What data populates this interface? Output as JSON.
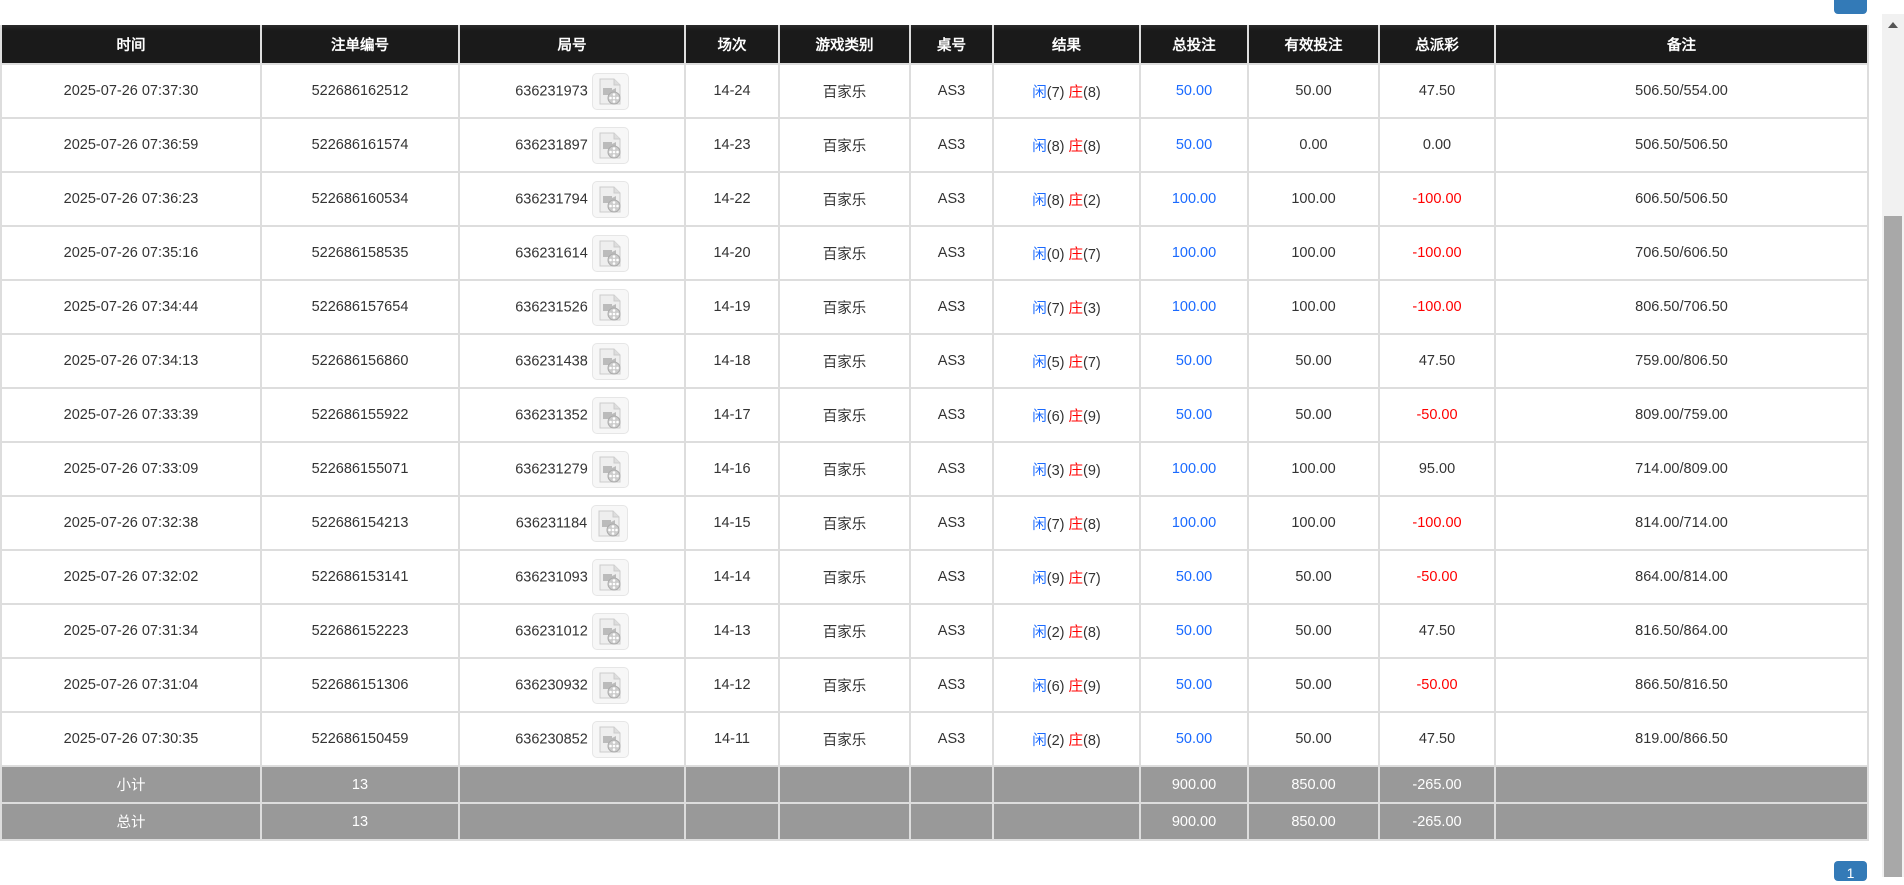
{
  "columns": [
    "时间",
    "注单编号",
    "局号",
    "场次",
    "游戏类别",
    "桌号",
    "结果",
    "总投注",
    "有效投注",
    "总派彩",
    "备注"
  ],
  "result_labels": {
    "player": "闲",
    "banker": "庄"
  },
  "colors": {
    "header_bg": "#1a1a1a",
    "total_bet": "#1a6aff",
    "negative": "#ff0000",
    "player": "#1a6aff",
    "banker": "#ff0000",
    "summary_bg": "#999999"
  },
  "icons": {
    "round_video": "video-replay-icon"
  },
  "rows": [
    {
      "time": "2025-07-26 07:37:30",
      "bet_id": "522686162512",
      "round": "636231973",
      "shoe": "14-24",
      "game": "百家乐",
      "table": "AS3",
      "player": "7",
      "banker": "8",
      "total_bet": "50.00",
      "valid_bet": "50.00",
      "payout": "47.50",
      "note": "506.50/554.00"
    },
    {
      "time": "2025-07-26 07:36:59",
      "bet_id": "522686161574",
      "round": "636231897",
      "shoe": "14-23",
      "game": "百家乐",
      "table": "AS3",
      "player": "8",
      "banker": "8",
      "total_bet": "50.00",
      "valid_bet": "0.00",
      "payout": "0.00",
      "note": "506.50/506.50"
    },
    {
      "time": "2025-07-26 07:36:23",
      "bet_id": "522686160534",
      "round": "636231794",
      "shoe": "14-22",
      "game": "百家乐",
      "table": "AS3",
      "player": "8",
      "banker": "2",
      "total_bet": "100.00",
      "valid_bet": "100.00",
      "payout": "-100.00",
      "note": "606.50/506.50"
    },
    {
      "time": "2025-07-26 07:35:16",
      "bet_id": "522686158535",
      "round": "636231614",
      "shoe": "14-20",
      "game": "百家乐",
      "table": "AS3",
      "player": "0",
      "banker": "7",
      "total_bet": "100.00",
      "valid_bet": "100.00",
      "payout": "-100.00",
      "note": "706.50/606.50"
    },
    {
      "time": "2025-07-26 07:34:44",
      "bet_id": "522686157654",
      "round": "636231526",
      "shoe": "14-19",
      "game": "百家乐",
      "table": "AS3",
      "player": "7",
      "banker": "3",
      "total_bet": "100.00",
      "valid_bet": "100.00",
      "payout": "-100.00",
      "note": "806.50/706.50"
    },
    {
      "time": "2025-07-26 07:34:13",
      "bet_id": "522686156860",
      "round": "636231438",
      "shoe": "14-18",
      "game": "百家乐",
      "table": "AS3",
      "player": "5",
      "banker": "7",
      "total_bet": "50.00",
      "valid_bet": "50.00",
      "payout": "47.50",
      "note": "759.00/806.50"
    },
    {
      "time": "2025-07-26 07:33:39",
      "bet_id": "522686155922",
      "round": "636231352",
      "shoe": "14-17",
      "game": "百家乐",
      "table": "AS3",
      "player": "6",
      "banker": "9",
      "total_bet": "50.00",
      "valid_bet": "50.00",
      "payout": "-50.00",
      "note": "809.00/759.00"
    },
    {
      "time": "2025-07-26 07:33:09",
      "bet_id": "522686155071",
      "round": "636231279",
      "shoe": "14-16",
      "game": "百家乐",
      "table": "AS3",
      "player": "3",
      "banker": "9",
      "total_bet": "100.00",
      "valid_bet": "100.00",
      "payout": "95.00",
      "note": "714.00/809.00"
    },
    {
      "time": "2025-07-26 07:32:38",
      "bet_id": "522686154213",
      "round": "636231184",
      "shoe": "14-15",
      "game": "百家乐",
      "table": "AS3",
      "player": "7",
      "banker": "8",
      "total_bet": "100.00",
      "valid_bet": "100.00",
      "payout": "-100.00",
      "note": "814.00/714.00"
    },
    {
      "time": "2025-07-26 07:32:02",
      "bet_id": "522686153141",
      "round": "636231093",
      "shoe": "14-14",
      "game": "百家乐",
      "table": "AS3",
      "player": "9",
      "banker": "7",
      "total_bet": "50.00",
      "valid_bet": "50.00",
      "payout": "-50.00",
      "note": "864.00/814.00"
    },
    {
      "time": "2025-07-26 07:31:34",
      "bet_id": "522686152223",
      "round": "636231012",
      "shoe": "14-13",
      "game": "百家乐",
      "table": "AS3",
      "player": "2",
      "banker": "8",
      "total_bet": "50.00",
      "valid_bet": "50.00",
      "payout": "47.50",
      "note": "816.50/864.00"
    },
    {
      "time": "2025-07-26 07:31:04",
      "bet_id": "522686151306",
      "round": "636230932",
      "shoe": "14-12",
      "game": "百家乐",
      "table": "AS3",
      "player": "6",
      "banker": "9",
      "total_bet": "50.00",
      "valid_bet": "50.00",
      "payout": "-50.00",
      "note": "866.50/816.50"
    },
    {
      "time": "2025-07-26 07:30:35",
      "bet_id": "522686150459",
      "round": "636230852",
      "shoe": "14-11",
      "game": "百家乐",
      "table": "AS3",
      "player": "2",
      "banker": "8",
      "total_bet": "50.00",
      "valid_bet": "50.00",
      "payout": "47.50",
      "note": "819.00/866.50"
    }
  ],
  "subtotal": {
    "label": "小计",
    "count": "13",
    "total_bet": "900.00",
    "valid_bet": "850.00",
    "payout": "-265.00"
  },
  "grandtotal": {
    "label": "总计",
    "count": "13",
    "total_bet": "900.00",
    "valid_bet": "850.00",
    "payout": "-265.00"
  },
  "pagination": {
    "current": "1"
  }
}
